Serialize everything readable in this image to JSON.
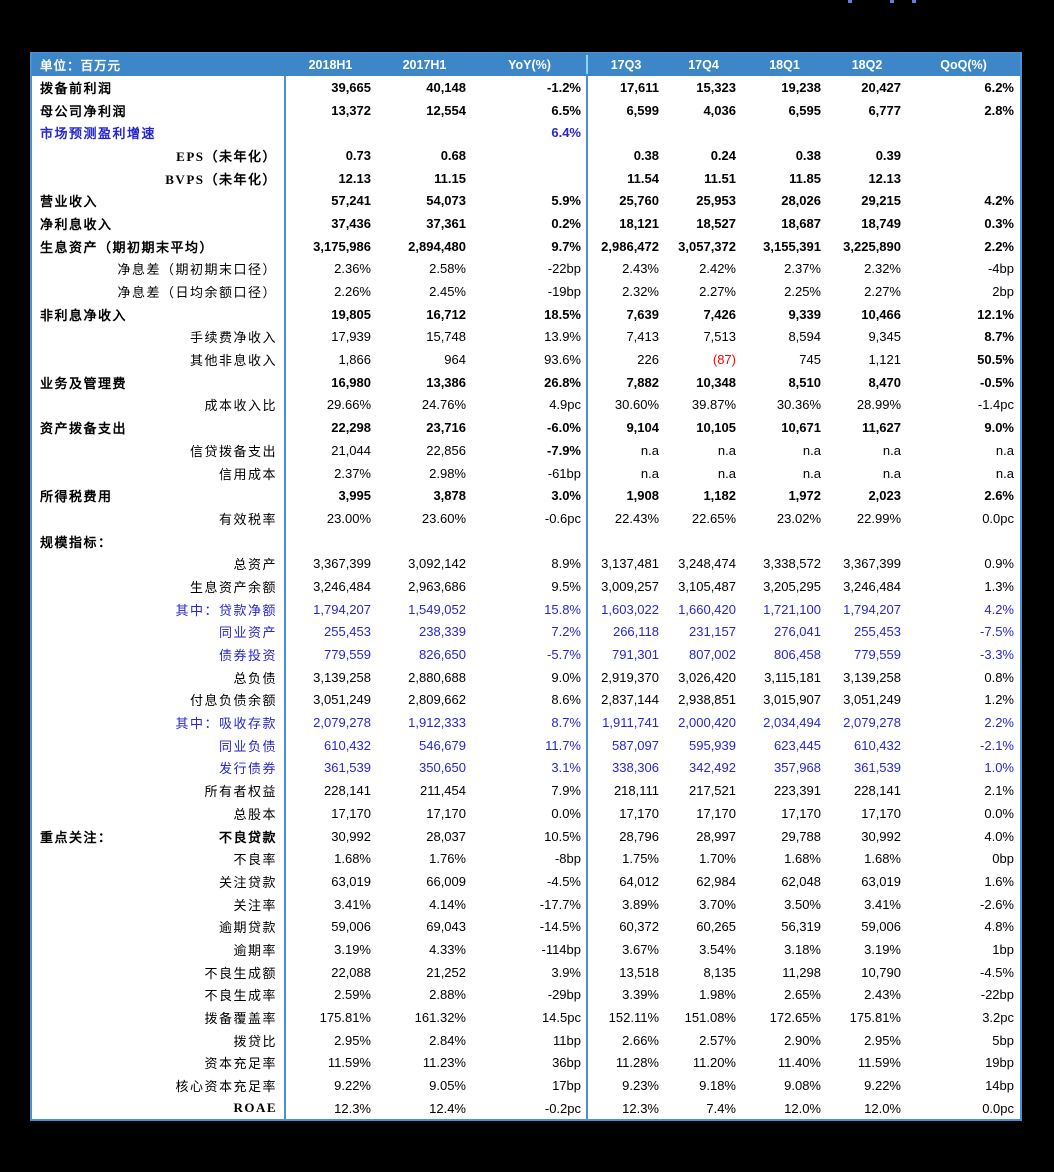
{
  "table": {
    "unit_label": "单位：百万元",
    "columns": [
      "2018H1",
      "2017H1",
      "YoY(%)",
      "17Q3",
      "17Q4",
      "18Q1",
      "18Q2",
      "QoQ(%)"
    ],
    "colors": {
      "header_bg": "#3d87c9",
      "header_text": "#ffffff",
      "border_blue": "#4a90d9",
      "header_divider": "#8ed5f2",
      "accent_blue_text": "#2626d2",
      "negative_red": "#ff0000"
    },
    "rows": [
      {
        "label": "拨备前利润",
        "align": "left",
        "label_bold": true,
        "values_bold": true,
        "values": [
          "39,665",
          "40,148",
          "-1.2%",
          "17,611",
          "15,323",
          "19,238",
          "20,427",
          "6.2%"
        ]
      },
      {
        "label": "母公司净利润",
        "align": "left",
        "label_bold": true,
        "values_bold": true,
        "values": [
          "13,372",
          "12,554",
          "6.5%",
          "6,599",
          "4,036",
          "6,595",
          "6,777",
          "2.8%"
        ]
      },
      {
        "label": "市场预测盈利增速",
        "align": "left",
        "label_bold": true,
        "label_color": "blue",
        "values_bold": true,
        "values_color": "blue",
        "values": [
          "",
          "",
          "6.4%",
          "",
          "",
          "",
          "",
          ""
        ]
      },
      {
        "label": "EPS（未年化）",
        "label_bold": true,
        "values_bold": true,
        "values": [
          "0.73",
          "0.68",
          "",
          "0.38",
          "0.24",
          "0.38",
          "0.39",
          ""
        ]
      },
      {
        "label": "BVPS（未年化）",
        "label_bold": true,
        "values_bold": true,
        "values": [
          "12.13",
          "11.15",
          "",
          "11.54",
          "11.51",
          "11.85",
          "12.13",
          ""
        ]
      },
      {
        "label": "营业收入",
        "align": "left",
        "label_bold": true,
        "values_bold": true,
        "values": [
          "57,241",
          "54,073",
          "5.9%",
          "25,760",
          "25,953",
          "28,026",
          "29,215",
          "4.2%"
        ]
      },
      {
        "label": "净利息收入",
        "align": "left",
        "label_bold": true,
        "values_bold": true,
        "values": [
          "37,436",
          "37,361",
          "0.2%",
          "18,121",
          "18,527",
          "18,687",
          "18,749",
          "0.3%"
        ]
      },
      {
        "label": "生息资产（期初期末平均）",
        "align": "left",
        "label_bold": true,
        "values_bold": true,
        "values": [
          "3,175,986",
          "2,894,480",
          "9.7%",
          "2,986,472",
          "3,057,372",
          "3,155,391",
          "3,225,890",
          "2.2%"
        ]
      },
      {
        "label": "净息差（期初期末口径）",
        "values": [
          "2.36%",
          "2.58%",
          "-22bp",
          "2.43%",
          "2.42%",
          "2.37%",
          "2.32%",
          "-4bp"
        ]
      },
      {
        "label": "净息差（日均余额口径）",
        "values": [
          "2.26%",
          "2.45%",
          "-19bp",
          "2.32%",
          "2.27%",
          "2.25%",
          "2.27%",
          "2bp"
        ]
      },
      {
        "label": "非利息净收入",
        "align": "left",
        "label_bold": true,
        "values_bold": true,
        "values": [
          "19,805",
          "16,712",
          "18.5%",
          "7,639",
          "7,426",
          "9,339",
          "10,466",
          "12.1%"
        ]
      },
      {
        "label": "手续费净收入",
        "bold_cells": [
          7
        ],
        "values": [
          "17,939",
          "15,748",
          "13.9%",
          "7,413",
          "7,513",
          "8,594",
          "9,345",
          "8.7%"
        ]
      },
      {
        "label": "其他非息收入",
        "bold_cells": [
          7
        ],
        "red_cells": [
          4
        ],
        "values": [
          "1,866",
          "964",
          "93.6%",
          "226",
          "(87)",
          "745",
          "1,121",
          "50.5%"
        ]
      },
      {
        "label": "业务及管理费",
        "align": "left",
        "label_bold": true,
        "values_bold": true,
        "values": [
          "16,980",
          "13,386",
          "26.8%",
          "7,882",
          "10,348",
          "8,510",
          "8,470",
          "-0.5%"
        ]
      },
      {
        "label": "成本收入比",
        "values": [
          "29.66%",
          "24.76%",
          "4.9pc",
          "30.60%",
          "39.87%",
          "30.36%",
          "28.99%",
          "-1.4pc"
        ]
      },
      {
        "label": "资产拨备支出",
        "align": "left",
        "label_bold": true,
        "values_bold": true,
        "values": [
          "22,298",
          "23,716",
          "-6.0%",
          "9,104",
          "10,105",
          "10,671",
          "11,627",
          "9.0%"
        ]
      },
      {
        "label": "信贷拨备支出",
        "bold_cells": [
          2
        ],
        "values": [
          "21,044",
          "22,856",
          "-7.9%",
          "n.a",
          "n.a",
          "n.a",
          "n.a",
          "n.a"
        ]
      },
      {
        "label": "信用成本",
        "values": [
          "2.37%",
          "2.98%",
          "-61bp",
          "n.a",
          "n.a",
          "n.a",
          "n.a",
          "n.a"
        ]
      },
      {
        "label": "所得税费用",
        "align": "left",
        "label_bold": true,
        "values_bold": true,
        "values": [
          "3,995",
          "3,878",
          "3.0%",
          "1,908",
          "1,182",
          "1,972",
          "2,023",
          "2.6%"
        ]
      },
      {
        "label": "有效税率",
        "values": [
          "23.00%",
          "23.60%",
          "-0.6pc",
          "22.43%",
          "22.65%",
          "23.02%",
          "22.99%",
          "0.0pc"
        ]
      },
      {
        "label": "规模指标：",
        "align": "left",
        "label_bold": true,
        "values": [
          "",
          "",
          "",
          "",
          "",
          "",
          "",
          ""
        ]
      },
      {
        "label": "总资产",
        "values": [
          "3,367,399",
          "3,092,142",
          "8.9%",
          "3,137,481",
          "3,248,474",
          "3,338,572",
          "3,367,399",
          "0.9%"
        ]
      },
      {
        "label": "生息资产余额",
        "values": [
          "3,246,484",
          "2,963,686",
          "9.5%",
          "3,009,257",
          "3,105,487",
          "3,205,295",
          "3,246,484",
          "1.3%"
        ]
      },
      {
        "label": "其中：贷款净额",
        "label_color": "blue",
        "values_color": "blue",
        "values": [
          "1,794,207",
          "1,549,052",
          "15.8%",
          "1,603,022",
          "1,660,420",
          "1,721,100",
          "1,794,207",
          "4.2%"
        ]
      },
      {
        "label": "同业资产",
        "label_color": "blue",
        "values_color": "blue",
        "values": [
          "255,453",
          "238,339",
          "7.2%",
          "266,118",
          "231,157",
          "276,041",
          "255,453",
          "-7.5%"
        ]
      },
      {
        "label": "债券投资",
        "label_color": "blue",
        "values_color": "blue",
        "values": [
          "779,559",
          "826,650",
          "-5.7%",
          "791,301",
          "807,002",
          "806,458",
          "779,559",
          "-3.3%"
        ]
      },
      {
        "label": "总负债",
        "values": [
          "3,139,258",
          "2,880,688",
          "9.0%",
          "2,919,370",
          "3,026,420",
          "3,115,181",
          "3,139,258",
          "0.8%"
        ]
      },
      {
        "label": "付息负债余额",
        "values": [
          "3,051,249",
          "2,809,662",
          "8.6%",
          "2,837,144",
          "2,938,851",
          "3,015,907",
          "3,051,249",
          "1.2%"
        ]
      },
      {
        "label": "其中：吸收存款",
        "label_color": "blue",
        "values_color": "blue",
        "values": [
          "2,079,278",
          "1,912,333",
          "8.7%",
          "1,911,741",
          "2,000,420",
          "2,034,494",
          "2,079,278",
          "2.2%"
        ]
      },
      {
        "label": "同业负债",
        "label_color": "blue",
        "values_color": "blue",
        "values": [
          "610,432",
          "546,679",
          "11.7%",
          "587,097",
          "595,939",
          "623,445",
          "610,432",
          "-2.1%"
        ]
      },
      {
        "label": "发行债券",
        "label_color": "blue",
        "values_color": "blue",
        "values": [
          "361,539",
          "350,650",
          "3.1%",
          "338,306",
          "342,492",
          "357,968",
          "361,539",
          "1.0%"
        ]
      },
      {
        "label": "所有者权益",
        "values": [
          "228,141",
          "211,454",
          "7.9%",
          "218,111",
          "217,521",
          "223,391",
          "228,141",
          "2.1%"
        ]
      },
      {
        "label": "总股本",
        "values": [
          "17,170",
          "17,170",
          "0.0%",
          "17,170",
          "17,170",
          "17,170",
          "17,170",
          "0.0%"
        ]
      },
      {
        "group": "重点关注：",
        "label": "不良贷款",
        "label_bold": true,
        "values": [
          "30,992",
          "28,037",
          "10.5%",
          "28,796",
          "28,997",
          "29,788",
          "30,992",
          "4.0%"
        ]
      },
      {
        "label": "不良率",
        "values": [
          "1.68%",
          "1.76%",
          "-8bp",
          "1.75%",
          "1.70%",
          "1.68%",
          "1.68%",
          "0bp"
        ]
      },
      {
        "label": "关注贷款",
        "values": [
          "63,019",
          "66,009",
          "-4.5%",
          "64,012",
          "62,984",
          "62,048",
          "63,019",
          "1.6%"
        ]
      },
      {
        "label": "关注率",
        "values": [
          "3.41%",
          "4.14%",
          "-17.7%",
          "3.89%",
          "3.70%",
          "3.50%",
          "3.41%",
          "-2.6%"
        ]
      },
      {
        "label": "逾期贷款",
        "values": [
          "59,006",
          "69,043",
          "-14.5%",
          "60,372",
          "60,265",
          "56,319",
          "59,006",
          "4.8%"
        ]
      },
      {
        "label": "逾期率",
        "values": [
          "3.19%",
          "4.33%",
          "-114bp",
          "3.67%",
          "3.54%",
          "3.18%",
          "3.19%",
          "1bp"
        ]
      },
      {
        "label": "不良生成额",
        "values": [
          "22,088",
          "21,252",
          "3.9%",
          "13,518",
          "8,135",
          "11,298",
          "10,790",
          "-4.5%"
        ]
      },
      {
        "label": "不良生成率",
        "values": [
          "2.59%",
          "2.88%",
          "-29bp",
          "3.39%",
          "1.98%",
          "2.65%",
          "2.43%",
          "-22bp"
        ]
      },
      {
        "label": "拨备覆盖率",
        "values": [
          "175.81%",
          "161.32%",
          "14.5pc",
          "152.11%",
          "151.08%",
          "172.65%",
          "175.81%",
          "3.2pc"
        ]
      },
      {
        "label": "拨贷比",
        "values": [
          "2.95%",
          "2.84%",
          "11bp",
          "2.66%",
          "2.57%",
          "2.90%",
          "2.95%",
          "5bp"
        ]
      },
      {
        "label": "资本充足率",
        "values": [
          "11.59%",
          "11.23%",
          "36bp",
          "11.28%",
          "11.20%",
          "11.40%",
          "11.59%",
          "19bp"
        ]
      },
      {
        "label": "核心资本充足率",
        "values": [
          "9.22%",
          "9.05%",
          "17bp",
          "9.23%",
          "9.18%",
          "9.08%",
          "9.22%",
          "14bp"
        ]
      },
      {
        "label": "ROAE",
        "label_bold": true,
        "values": [
          "12.3%",
          "12.4%",
          "-0.2pc",
          "12.3%",
          "7.4%",
          "12.0%",
          "12.0%",
          "0.0pc"
        ]
      }
    ]
  },
  "artifacts": {
    "top_edge_marks_x": [
      848,
      890,
      912
    ]
  }
}
